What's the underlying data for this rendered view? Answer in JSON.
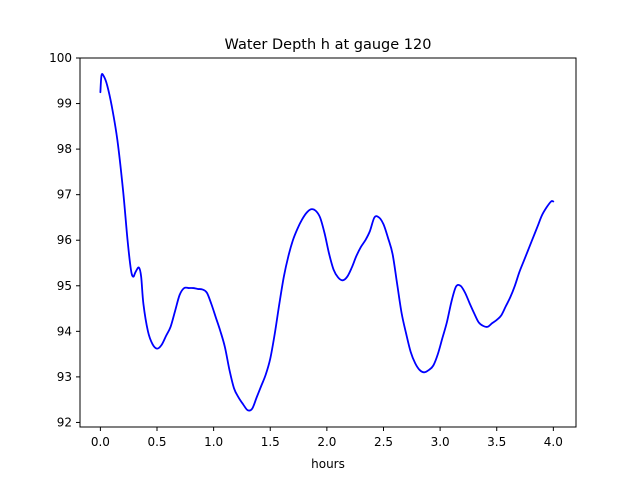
{
  "chart_data": {
    "type": "line",
    "title": "Water Depth h at gauge 120",
    "xlabel": "hours",
    "ylabel": "",
    "xlim": [
      -0.18,
      4.2
    ],
    "ylim": [
      91.9,
      100.0
    ],
    "xticks": [
      0.0,
      0.5,
      1.0,
      1.5,
      2.0,
      2.5,
      3.0,
      3.5,
      4.0
    ],
    "xtick_labels": [
      "0.0",
      "0.5",
      "1.0",
      "1.5",
      "2.0",
      "2.5",
      "3.0",
      "3.5",
      "4.0"
    ],
    "yticks": [
      92,
      93,
      94,
      95,
      96,
      97,
      98,
      99,
      100
    ],
    "ytick_labels": [
      "92",
      "93",
      "94",
      "95",
      "96",
      "97",
      "98",
      "99",
      "100"
    ],
    "grid": false,
    "line_color": "#0000ff",
    "series": [
      {
        "x": [
          0.0,
          0.01,
          0.03,
          0.06,
          0.1,
          0.15,
          0.2,
          0.24,
          0.27,
          0.29,
          0.31,
          0.34,
          0.36,
          0.38,
          0.42,
          0.46,
          0.5,
          0.54,
          0.58,
          0.62,
          0.66,
          0.7,
          0.74,
          0.78,
          0.82,
          0.86,
          0.9,
          0.94,
          0.98,
          1.02,
          1.06,
          1.1,
          1.14,
          1.18,
          1.22,
          1.26,
          1.3,
          1.34,
          1.38,
          1.42,
          1.46,
          1.5,
          1.54,
          1.58,
          1.62,
          1.66,
          1.7,
          1.74,
          1.78,
          1.82,
          1.86,
          1.9,
          1.94,
          1.98,
          2.02,
          2.06,
          2.1,
          2.14,
          2.18,
          2.22,
          2.26,
          2.3,
          2.34,
          2.38,
          2.42,
          2.46,
          2.5,
          2.54,
          2.58,
          2.62,
          2.66,
          2.7,
          2.74,
          2.78,
          2.82,
          2.86,
          2.9,
          2.94,
          2.98,
          3.02,
          3.06,
          3.1,
          3.14,
          3.18,
          3.22,
          3.26,
          3.3,
          3.34,
          3.38,
          3.42,
          3.46,
          3.5,
          3.54,
          3.58,
          3.62,
          3.66,
          3.7,
          3.74,
          3.78,
          3.82,
          3.86,
          3.9,
          3.94,
          3.98,
          4.0
        ],
        "y": [
          99.25,
          99.62,
          99.6,
          99.4,
          98.95,
          98.2,
          97.1,
          96.0,
          95.35,
          95.2,
          95.3,
          95.4,
          95.2,
          94.6,
          94.0,
          93.72,
          93.62,
          93.7,
          93.9,
          94.1,
          94.45,
          94.8,
          94.95,
          94.95,
          94.95,
          94.93,
          94.92,
          94.85,
          94.6,
          94.3,
          94.0,
          93.65,
          93.15,
          92.75,
          92.55,
          92.4,
          92.27,
          92.3,
          92.55,
          92.8,
          93.05,
          93.4,
          93.95,
          94.6,
          95.2,
          95.65,
          96.0,
          96.25,
          96.45,
          96.6,
          96.68,
          96.65,
          96.5,
          96.15,
          95.7,
          95.35,
          95.18,
          95.12,
          95.2,
          95.4,
          95.65,
          95.85,
          96.0,
          96.2,
          96.5,
          96.5,
          96.35,
          96.05,
          95.7,
          95.05,
          94.4,
          93.95,
          93.55,
          93.3,
          93.15,
          93.1,
          93.15,
          93.25,
          93.5,
          93.85,
          94.2,
          94.65,
          94.98,
          95.0,
          94.85,
          94.62,
          94.4,
          94.2,
          94.12,
          94.1,
          94.18,
          94.25,
          94.35,
          94.55,
          94.75,
          95.0,
          95.3,
          95.55,
          95.8,
          96.05,
          96.3,
          96.55,
          96.72,
          96.85,
          96.85
        ]
      }
    ]
  }
}
